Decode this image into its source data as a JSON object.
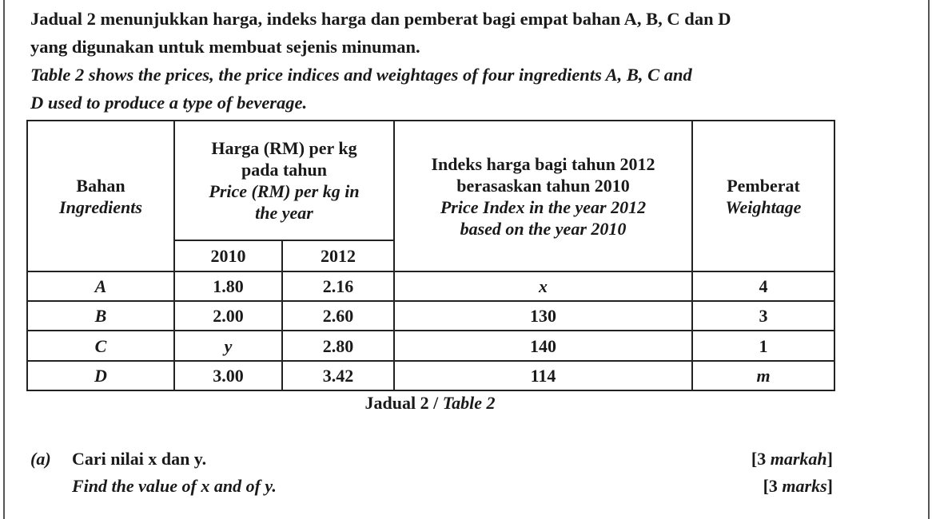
{
  "intro": {
    "malay_line1": "Jadual 2 menunjukkan harga, indeks harga dan pemberat bagi empat bahan A, B, C dan D",
    "malay_line2": "yang digunakan untuk membuat sejenis minuman.",
    "english_line1": "Table 2 shows the prices, the price indices and weightages of four ingredients A, B, C and",
    "english_line2": "D used to produce a type of beverage."
  },
  "table": {
    "headers": {
      "ingredient_malay": "Bahan",
      "ingredient_english": "Ingredients",
      "price_malay_1": "Harga (RM) per kg",
      "price_malay_2": "pada tahun",
      "price_english_1": "Price (RM) per kg in",
      "price_english_2": "the year",
      "year_2010": "2010",
      "year_2012": "2012",
      "index_malay_1": "Indeks harga bagi tahun 2012",
      "index_malay_2": "berasaskan tahun 2010",
      "index_english_1": "Price Index in the year 2012",
      "index_english_2": "based on the year 2010",
      "weight_malay": "Pemberat",
      "weight_english": "Weightage"
    },
    "rows": [
      {
        "ingredient": "A",
        "p2010": "1.80",
        "p2012": "2.16",
        "index": "x",
        "weight": "4"
      },
      {
        "ingredient": "B",
        "p2010": "2.00",
        "p2012": "2.60",
        "index": "130",
        "weight": "3"
      },
      {
        "ingredient": "C",
        "p2010": "y",
        "p2012": "2.80",
        "index": "140",
        "weight": "1"
      },
      {
        "ingredient": "D",
        "p2010": "3.00",
        "p2012": "3.42",
        "index": "114",
        "weight": "m"
      }
    ],
    "caption_malay": "Jadual 2",
    "caption_sep": " / ",
    "caption_english": "Table 2"
  },
  "question_a": {
    "label": "(a)",
    "malay": "Cari nilai x dan y.",
    "english": "Find the value of x and of y.",
    "marks_malay": "[3 markah]",
    "marks_english": "[3 marks]"
  }
}
